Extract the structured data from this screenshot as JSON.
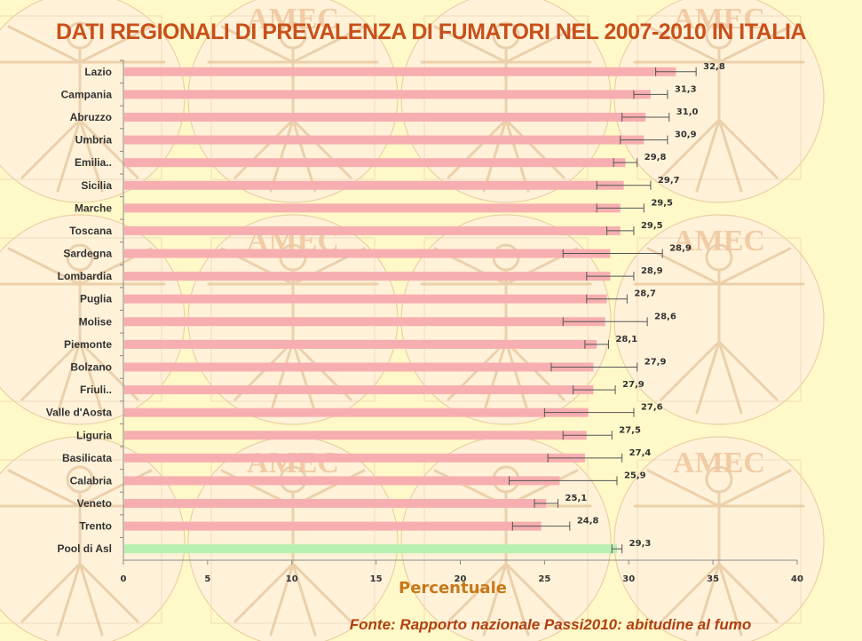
{
  "title": "DATI REGIONALI DI PREVALENZA DI FUMATORI NEL 2007-2010 IN ITALIA",
  "source": "Fonte: Rapporto nazionale Passi2010: abitudine al fumo",
  "watermark_text": "AMEC",
  "colors": {
    "background": "#fff8c8",
    "title": "#c8501a",
    "bar": "#f7aeb0",
    "pool_bar": "#b8f0b0",
    "axis_title": "#c8781a",
    "labels": "#333333",
    "error_bar": "#555555"
  },
  "chart_data": {
    "type": "bar",
    "orientation": "horizontal",
    "title": "DATI REGIONALI DI PREVALENZA DI FUMATORI NEL 2007-2010 IN ITALIA",
    "xlabel": "Percentuale",
    "ylabel": "",
    "xlim": [
      0,
      40
    ],
    "xticks": [
      "0",
      "5",
      "10",
      "15",
      "20",
      "25",
      "30",
      "35",
      "40"
    ],
    "categories": [
      "Lazio",
      "Campania",
      "Abruzzo",
      "Umbria",
      "Emilia..",
      "Sicilia",
      "Marche",
      "Toscana",
      "Sardegna",
      "Lombardia",
      "Puglia",
      "Molise",
      "Piemonte",
      "Bolzano",
      "Friuli..",
      "Valle d'Aosta",
      "Liguria",
      "Basilicata",
      "Calabria",
      "Veneto",
      "Trento",
      "Pool di Asl"
    ],
    "values": [
      32.8,
      31.3,
      31.0,
      30.9,
      29.8,
      29.7,
      29.5,
      29.5,
      28.9,
      28.9,
      28.7,
      28.6,
      28.1,
      27.9,
      27.9,
      27.6,
      27.5,
      27.4,
      25.9,
      25.1,
      24.8,
      29.3
    ],
    "value_labels": [
      "32,8",
      "31,3",
      "31,0",
      "30,9",
      "29,8",
      "29,7",
      "29,5",
      "29,5",
      "28,9",
      "28,9",
      "28,7",
      "28,6",
      "28,1",
      "27,9",
      "27,9",
      "27,6",
      "27,5",
      "27,4",
      "25,9",
      "25,1",
      "24,8",
      "29,3"
    ],
    "ci_low": [
      31.6,
      30.3,
      29.6,
      29.5,
      29.1,
      28.1,
      28.1,
      28.7,
      26.1,
      27.5,
      27.5,
      26.1,
      27.4,
      25.4,
      26.7,
      25.0,
      26.1,
      25.2,
      22.9,
      24.4,
      23.1,
      29.0
    ],
    "ci_high": [
      34.0,
      32.3,
      32.4,
      32.3,
      30.5,
      31.3,
      30.9,
      30.3,
      32.0,
      30.3,
      29.9,
      31.1,
      28.8,
      30.5,
      29.2,
      30.3,
      29.0,
      29.6,
      29.3,
      25.8,
      26.5,
      29.6
    ],
    "highlight_last": true,
    "grid": false,
    "legend": "none"
  }
}
